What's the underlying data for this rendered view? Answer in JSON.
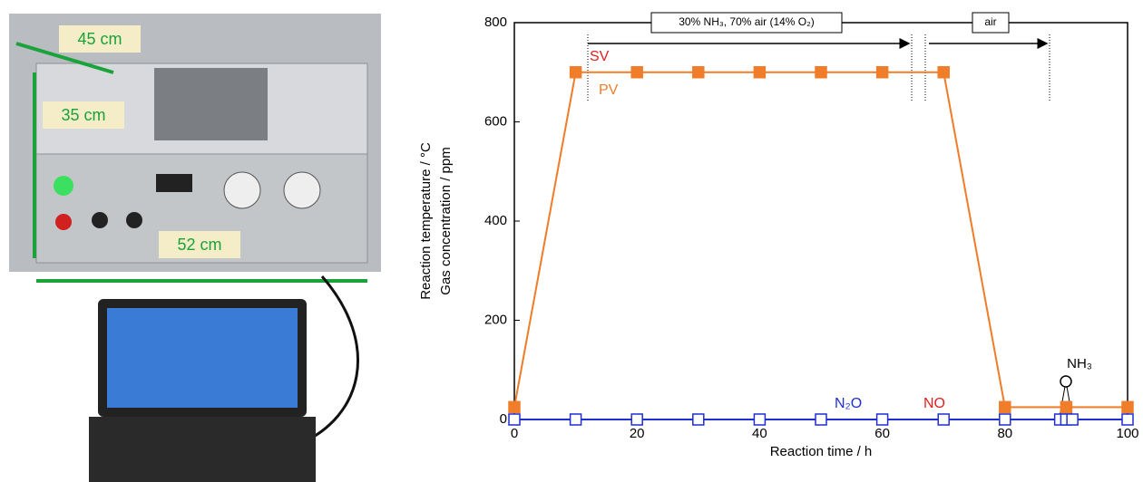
{
  "photo": {
    "labels": [
      "45 cm",
      "35 cm",
      "52 cm"
    ]
  },
  "chart_data": {
    "type": "line",
    "x_label": "Reaction time / h",
    "y_label": [
      "Reaction temperature / °C",
      "Gas concentration / ppm"
    ],
    "xlim": [
      0,
      100
    ],
    "xticks": [
      0,
      20,
      40,
      60,
      80,
      100
    ],
    "ylim": [
      0,
      800
    ],
    "yticks": [
      0,
      200,
      400,
      600,
      800
    ],
    "series": [
      {
        "name": "SV",
        "color": "#e02020",
        "marker": "none",
        "x": [
          0,
          10,
          70,
          80,
          100
        ],
        "values": [
          25,
          700,
          700,
          25,
          25
        ]
      },
      {
        "name": "NO",
        "color": "#e02020",
        "marker": "none",
        "x": [
          0,
          100
        ],
        "values": [
          0,
          0
        ]
      },
      {
        "name": "PV",
        "color": "#f07d2a",
        "marker": "square-filled",
        "x": [
          0,
          10,
          20,
          30,
          40,
          50,
          60,
          70,
          80,
          90,
          100
        ],
        "values": [
          25,
          700,
          700,
          700,
          700,
          700,
          700,
          700,
          25,
          25,
          25
        ]
      },
      {
        "name": "N₂O",
        "color": "#1f2fd0",
        "marker": "square-open",
        "x": [
          0,
          10,
          20,
          30,
          40,
          50,
          60,
          70,
          80,
          89,
          90,
          91,
          100
        ],
        "values": [
          0,
          0,
          0,
          0,
          0,
          0,
          0,
          0,
          0,
          0,
          0,
          0,
          0
        ]
      }
    ],
    "annotations": [
      "30% NH₃, 70% air (14% O₂)",
      "air",
      "NH₃"
    ]
  }
}
